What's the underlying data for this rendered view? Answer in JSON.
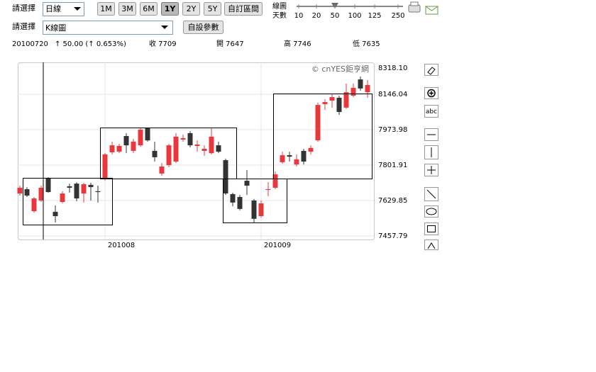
{
  "toolbar": {
    "period_label": "請選擇",
    "period_select": "日線",
    "range_buttons": [
      "1M",
      "3M",
      "6M",
      "1Y",
      "2Y",
      "5Y",
      "自訂區間"
    ],
    "slider_label": [
      "線圖",
      "天數"
    ],
    "slider_ticks": [
      "10",
      "20",
      "50",
      "100",
      "125",
      "250"
    ],
    "chart_type_label": "請選擇",
    "chart_type_select": "K線圖",
    "param_button": "自設參數"
  },
  "quote": {
    "date": "20100720",
    "change": "↑ 50.00 (↑ 0.653%)",
    "close": "收 7709",
    "open": "開 7647",
    "high": "高 7746",
    "low": "低 7635"
  },
  "tools": {
    "text_tool": "abc"
  },
  "chart_data": {
    "type": "candlestick",
    "watermark": "© cnYES鉅亨網",
    "up_color": "#e8383d",
    "down_color": "#333333",
    "grid": true,
    "xlim": [
      -0.3,
      49.9
    ],
    "xticks": [
      {
        "value": 12,
        "label": "201008"
      },
      {
        "value": 34,
        "label": "201009"
      }
    ],
    "ylim": [
      7440.6,
      8318.1
    ],
    "yticks": [
      {
        "value": 8318.1,
        "label": "8318.10"
      },
      8146.04,
      7973.98,
      7801.91,
      7629.85,
      7457.79
    ],
    "open": [
      7664,
      7685,
      7578,
      7630,
      7740,
      7575,
      7623,
      7699,
      7712,
      7664,
      7706,
      7675,
      7733,
      7864,
      7867,
      7943,
      7871,
      7898,
      7981,
      7871,
      7761,
      7802,
      7819,
      7926,
      7957,
      7895,
      7871,
      7860,
      7898,
      7826,
      7661,
      7647,
      7726,
      7630,
      7554,
      7682,
      7692,
      7816,
      7850,
      7805,
      7871,
      7867,
      7922,
      8098,
      8115,
      8129,
      8081,
      8139,
      8218,
      8156
    ],
    "close": [
      7692,
      7654,
      7640,
      7692,
      7671,
      7554,
      7664,
      7692,
      7640,
      7709,
      7695,
      7671,
      7854,
      7898,
      7895,
      7898,
      7916,
      7974,
      7922,
      7840,
      7795,
      7898,
      7940,
      7933,
      7898,
      7902,
      7881,
      7940,
      7867,
      7664,
      7620,
      7589,
      7702,
      7541,
      7616,
      7685,
      7757,
      7850,
      7843,
      7830,
      7819,
      7885,
      8094,
      8108,
      8132,
      8060,
      8156,
      8177,
      8174,
      8191
    ],
    "high": [
      7702,
      7695,
      7647,
      7702,
      7743,
      7606,
      7675,
      7712,
      7719,
      7716,
      7716,
      7702,
      7860,
      7916,
      7905,
      7957,
      7929,
      7984,
      7984,
      7916,
      7812,
      7905,
      7957,
      7950,
      7967,
      7922,
      7898,
      7984,
      7916,
      7833,
      7668,
      7657,
      7778,
      7637,
      7630,
      7719,
      7771,
      7867,
      7867,
      7854,
      7881,
      7898,
      8105,
      8122,
      8146,
      8139,
      8198,
      8198,
      8232,
      8215
    ],
    "low": [
      7654,
      7647,
      7571,
      7623,
      7668,
      7523,
      7616,
      7668,
      7627,
      7620,
      7630,
      7620,
      7726,
      7854,
      7860,
      7860,
      7860,
      7891,
      7916,
      7819,
      7750,
      7792,
      7812,
      7916,
      7888,
      7867,
      7847,
      7854,
      7860,
      7657,
      7602,
      7582,
      7657,
      7520,
      7547,
      7651,
      7685,
      7809,
      7819,
      7795,
      7805,
      7854,
      7916,
      8070,
      8081,
      8046,
      8074,
      8132,
      8163,
      8129
    ]
  }
}
